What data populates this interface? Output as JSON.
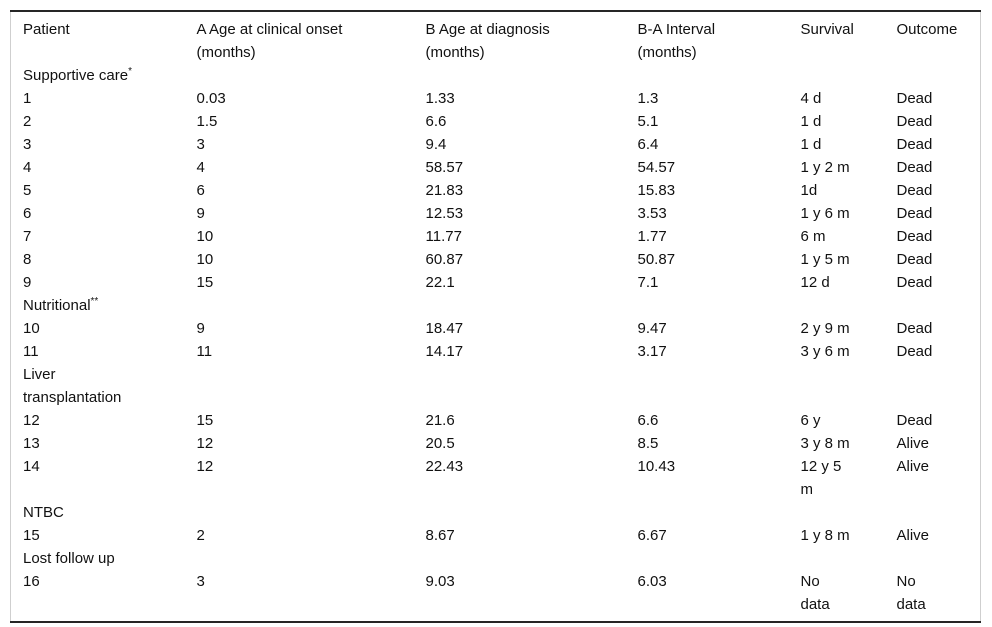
{
  "style": {
    "background": "#ffffff",
    "text_color": "#111111",
    "rule_dark": "#262626",
    "rule_light": "#cfcfcf"
  },
  "table": {
    "columns": [
      {
        "label": "Patient"
      },
      {
        "label": "A Age at clinical onset\n(months)"
      },
      {
        "label": "B Age at diagnosis\n(months)"
      },
      {
        "label": "B-A Interval\n(months)"
      },
      {
        "label": "Survival"
      },
      {
        "label": "Outcome"
      }
    ],
    "rows": [
      {
        "type": "section",
        "label": "Supportive care",
        "sup": "*"
      },
      {
        "type": "data",
        "patient": "1",
        "onset": "0.03",
        "diagnosis": "1.33",
        "interval": "1.3",
        "survival": "4 d",
        "outcome": "Dead"
      },
      {
        "type": "data",
        "patient": "2",
        "onset": "1.5",
        "diagnosis": "6.6",
        "interval": "5.1",
        "survival": "1 d",
        "outcome": "Dead"
      },
      {
        "type": "data",
        "patient": "3",
        "onset": "3",
        "diagnosis": "9.4",
        "interval": "6.4",
        "survival": "1 d",
        "outcome": "Dead"
      },
      {
        "type": "data",
        "patient": "4",
        "onset": "4",
        "diagnosis": "58.57",
        "interval": "54.57",
        "survival": "1 y 2 m",
        "outcome": "Dead"
      },
      {
        "type": "data",
        "patient": "5",
        "onset": "6",
        "diagnosis": "21.83",
        "interval": "15.83",
        "survival": "1d",
        "outcome": "Dead"
      },
      {
        "type": "data",
        "patient": "6",
        "onset": "9",
        "diagnosis": "12.53",
        "interval": "3.53",
        "survival": "1 y 6 m",
        "outcome": "Dead"
      },
      {
        "type": "data",
        "patient": "7",
        "onset": "10",
        "diagnosis": "11.77",
        "interval": "1.77",
        "survival": "6 m",
        "outcome": "Dead"
      },
      {
        "type": "data",
        "patient": "8",
        "onset": "10",
        "diagnosis": "60.87",
        "interval": "50.87",
        "survival": "1 y 5 m",
        "outcome": "Dead"
      },
      {
        "type": "data",
        "patient": "9",
        "onset": "15",
        "diagnosis": "22.1",
        "interval": "7.1",
        "survival": "12 d",
        "outcome": "Dead"
      },
      {
        "type": "section",
        "label": "Nutritional",
        "sup": "**"
      },
      {
        "type": "data",
        "patient": "10",
        "onset": "9",
        "diagnosis": "18.47",
        "interval": "9.47",
        "survival": "2 y 9 m",
        "outcome": "Dead"
      },
      {
        "type": "data",
        "patient": "11",
        "onset": "11",
        "diagnosis": "14.17",
        "interval": "3.17",
        "survival": "3 y 6 m",
        "outcome": "Dead"
      },
      {
        "type": "section",
        "label": "Liver\ntransplantation",
        "sup": ""
      },
      {
        "type": "data",
        "patient": "12",
        "onset": "15",
        "diagnosis": "21.6",
        "interval": "6.6",
        "survival": "6 y",
        "outcome": "Dead"
      },
      {
        "type": "data",
        "patient": "13",
        "onset": "12",
        "diagnosis": "20.5",
        "interval": "8.5",
        "survival": "3 y 8 m",
        "outcome": "Alive"
      },
      {
        "type": "data",
        "patient": "14",
        "onset": "12",
        "diagnosis": "22.43",
        "interval": "10.43",
        "survival": "12 y 5\nm",
        "outcome": "Alive"
      },
      {
        "type": "section",
        "label": "NTBC",
        "sup": ""
      },
      {
        "type": "data",
        "patient": "15",
        "onset": "2",
        "diagnosis": "8.67",
        "interval": "6.67",
        "survival": "1 y 8 m",
        "outcome": "Alive"
      },
      {
        "type": "section",
        "label": "Lost follow up",
        "sup": ""
      },
      {
        "type": "data",
        "patient": "16",
        "onset": "3",
        "diagnosis": "9.03",
        "interval": "6.03",
        "survival": "No\ndata",
        "outcome": "No\ndata"
      }
    ]
  }
}
